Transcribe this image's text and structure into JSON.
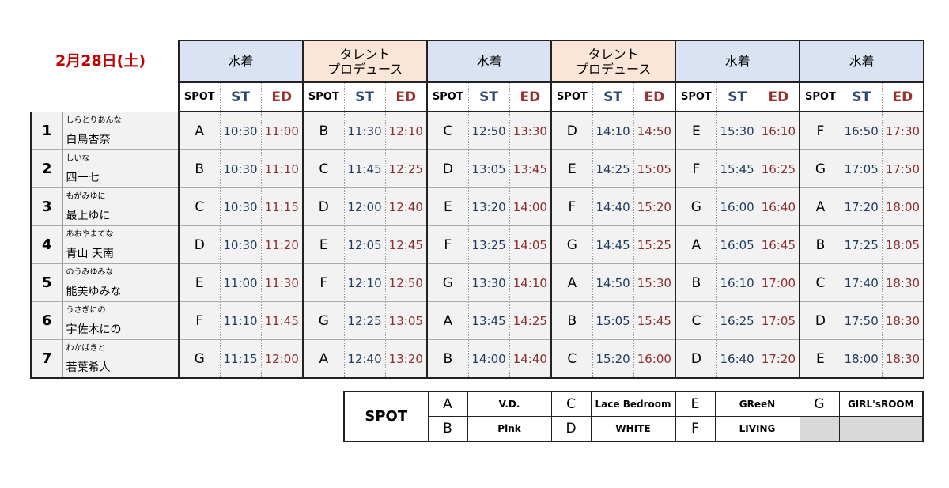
{
  "date": "2月28日(土)",
  "sessions": [
    {
      "lines": [
        "水着"
      ],
      "color": "#dae3f3"
    },
    {
      "lines": [
        "タレント",
        "プロデュース"
      ],
      "color": "#fbe5d6"
    },
    {
      "lines": [
        "水着"
      ],
      "color": "#dae3f3"
    },
    {
      "lines": [
        "タレント",
        "プロデュース"
      ],
      "color": "#fbe5d6"
    },
    {
      "lines": [
        "水着"
      ],
      "color": "#dae3f3"
    },
    {
      "lines": [
        "水着"
      ],
      "color": "#dae3f3"
    }
  ],
  "column_headers": [
    "SPOT",
    "ST",
    "ED"
  ],
  "rows": [
    {
      "num": "1",
      "kana": "しらとりあんな",
      "name": "白鳥杏奈",
      "slots": [
        [
          "A",
          "10:30",
          "11:00"
        ],
        [
          "B",
          "11:30",
          "12:10"
        ],
        [
          "C",
          "12:50",
          "13:30"
        ],
        [
          "D",
          "14:10",
          "14:50"
        ],
        [
          "E",
          "15:30",
          "16:10"
        ],
        [
          "F",
          "16:50",
          "17:30"
        ]
      ]
    },
    {
      "num": "2",
      "kana": "しいな",
      "name": "四一七",
      "slots": [
        [
          "B",
          "10:30",
          "11:10"
        ],
        [
          "C",
          "11:45",
          "12:25"
        ],
        [
          "D",
          "13:05",
          "13:45"
        ],
        [
          "E",
          "14:25",
          "15:05"
        ],
        [
          "F",
          "15:45",
          "16:25"
        ],
        [
          "G",
          "17:05",
          "17:50"
        ]
      ]
    },
    {
      "num": "3",
      "kana": "もがみゆに",
      "name": "最上ゆに",
      "slots": [
        [
          "C",
          "10:30",
          "11:15"
        ],
        [
          "D",
          "12:00",
          "12:40"
        ],
        [
          "E",
          "13:20",
          "14:00"
        ],
        [
          "F",
          "14:40",
          "15:20"
        ],
        [
          "G",
          "16:00",
          "16:40"
        ],
        [
          "A",
          "17:20",
          "18:00"
        ]
      ]
    },
    {
      "num": "4",
      "kana": "あおやまてな",
      "name": "青山 天南",
      "slots": [
        [
          "D",
          "10:30",
          "11:20"
        ],
        [
          "E",
          "12:05",
          "12:45"
        ],
        [
          "F",
          "13:25",
          "14:05"
        ],
        [
          "G",
          "14:45",
          "15:25"
        ],
        [
          "A",
          "16:05",
          "16:45"
        ],
        [
          "B",
          "17:25",
          "18:05"
        ]
      ]
    },
    {
      "num": "5",
      "kana": "のうみゆみな",
      "name": "能美ゆみな",
      "slots": [
        [
          "E",
          "11:00",
          "11:30"
        ],
        [
          "F",
          "12:10",
          "12:50"
        ],
        [
          "G",
          "13:30",
          "14:10"
        ],
        [
          "A",
          "14:50",
          "15:30"
        ],
        [
          "B",
          "16:10",
          "17:00"
        ],
        [
          "C",
          "17:40",
          "18:30"
        ]
      ]
    },
    {
      "num": "6",
      "kana": "うさぎにの",
      "name": "宇佐木にの",
      "slots": [
        [
          "F",
          "11:10",
          "11:45"
        ],
        [
          "G",
          "12:25",
          "13:05"
        ],
        [
          "A",
          "13:45",
          "14:25"
        ],
        [
          "B",
          "15:05",
          "15:45"
        ],
        [
          "C",
          "16:25",
          "17:05"
        ],
        [
          "D",
          "17:50",
          "18:30"
        ]
      ]
    },
    {
      "num": "7",
      "kana": "わかばきと",
      "name": "若葉希人",
      "slots": [
        [
          "G",
          "11:15",
          "12:00"
        ],
        [
          "A",
          "12:40",
          "13:20"
        ],
        [
          "B",
          "14:00",
          "14:40"
        ],
        [
          "C",
          "15:20",
          "16:00"
        ],
        [
          "D",
          "16:40",
          "17:20"
        ],
        [
          "E",
          "18:00",
          "18:30"
        ]
      ]
    }
  ],
  "legend": {
    "title": "SPOT",
    "rows": [
      [
        {
          "spot": "A",
          "name": "V.D."
        },
        {
          "spot": "C",
          "name": "Lace Bedroom"
        },
        {
          "spot": "E",
          "name": "GReeN"
        },
        {
          "spot": "G",
          "name": "GIRL'sROOM"
        }
      ],
      [
        {
          "spot": "B",
          "name": "Pink"
        },
        {
          "spot": "D",
          "name": "WHITE"
        },
        {
          "spot": "F",
          "name": "LIVING"
        }
      ]
    ]
  }
}
